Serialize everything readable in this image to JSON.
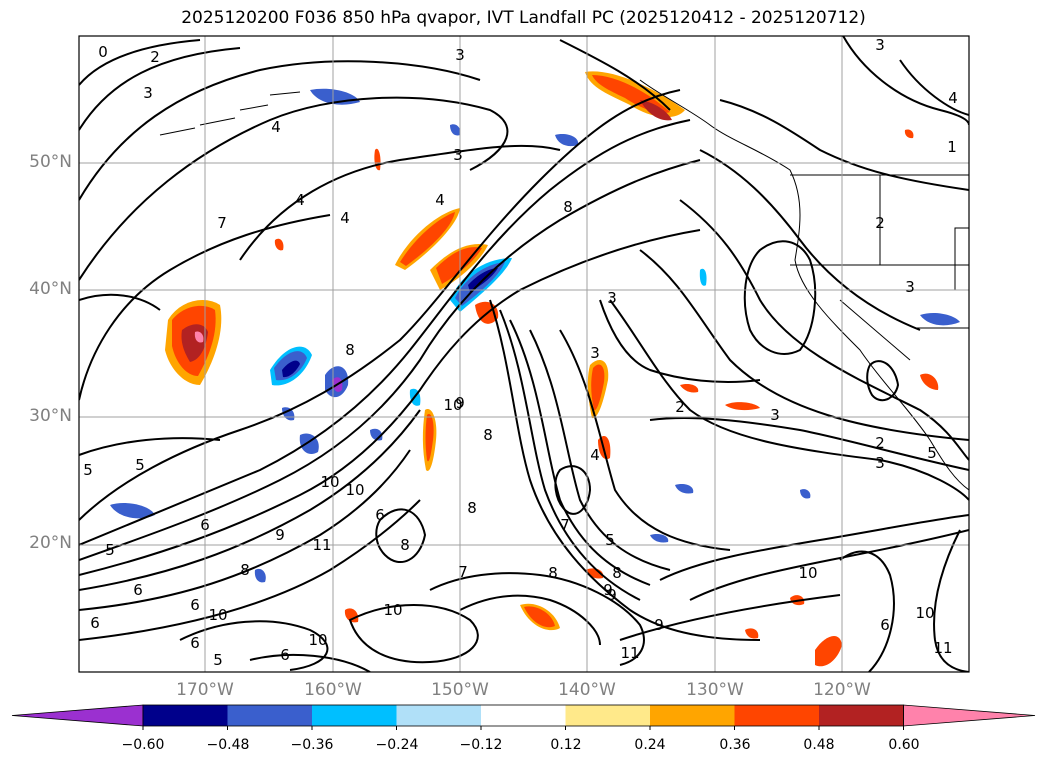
{
  "title": "2025120200 F036 850 hPa qvapor, IVT Landfall PC (2025120412 - 2025120712)",
  "lat_labels": [
    "50°N",
    "40°N",
    "30°N",
    "20°N"
  ],
  "lon_labels": [
    "170°W",
    "160°W",
    "150°W",
    "140°W",
    "130°W",
    "120°W"
  ],
  "colorbar": {
    "ticks": [
      "−0.60",
      "−0.48",
      "−0.36",
      "−0.24",
      "−0.12",
      "0.12",
      "0.24",
      "0.36",
      "0.48",
      "0.60"
    ],
    "colors": [
      "#9b30d0",
      "#00008b",
      "#3a5fcd",
      "#00bfff",
      "#b0e0f8",
      "#ffffff",
      "#ffe98a",
      "#ffa500",
      "#ff4500",
      "#b22222",
      "#ff82ab"
    ]
  },
  "contour_labels": [
    "0",
    "2",
    "3",
    "4",
    "3",
    "3",
    "3",
    "4",
    "4",
    "4",
    "8",
    "7",
    "3",
    "3",
    "4",
    "3",
    "4",
    "1",
    "2",
    "3",
    "2",
    "2",
    "3",
    "5",
    "5",
    "6",
    "5",
    "10",
    "9",
    "6",
    "8",
    "8",
    "10",
    "7",
    "8",
    "9",
    "10",
    "8",
    "5",
    "10",
    "6",
    "5",
    "10",
    "7",
    "8",
    "9",
    "11",
    "10",
    "6",
    "9",
    "8",
    "11",
    "10",
    "6",
    "8",
    "9",
    "10",
    "11",
    "5",
    "6",
    "6",
    "6"
  ]
}
